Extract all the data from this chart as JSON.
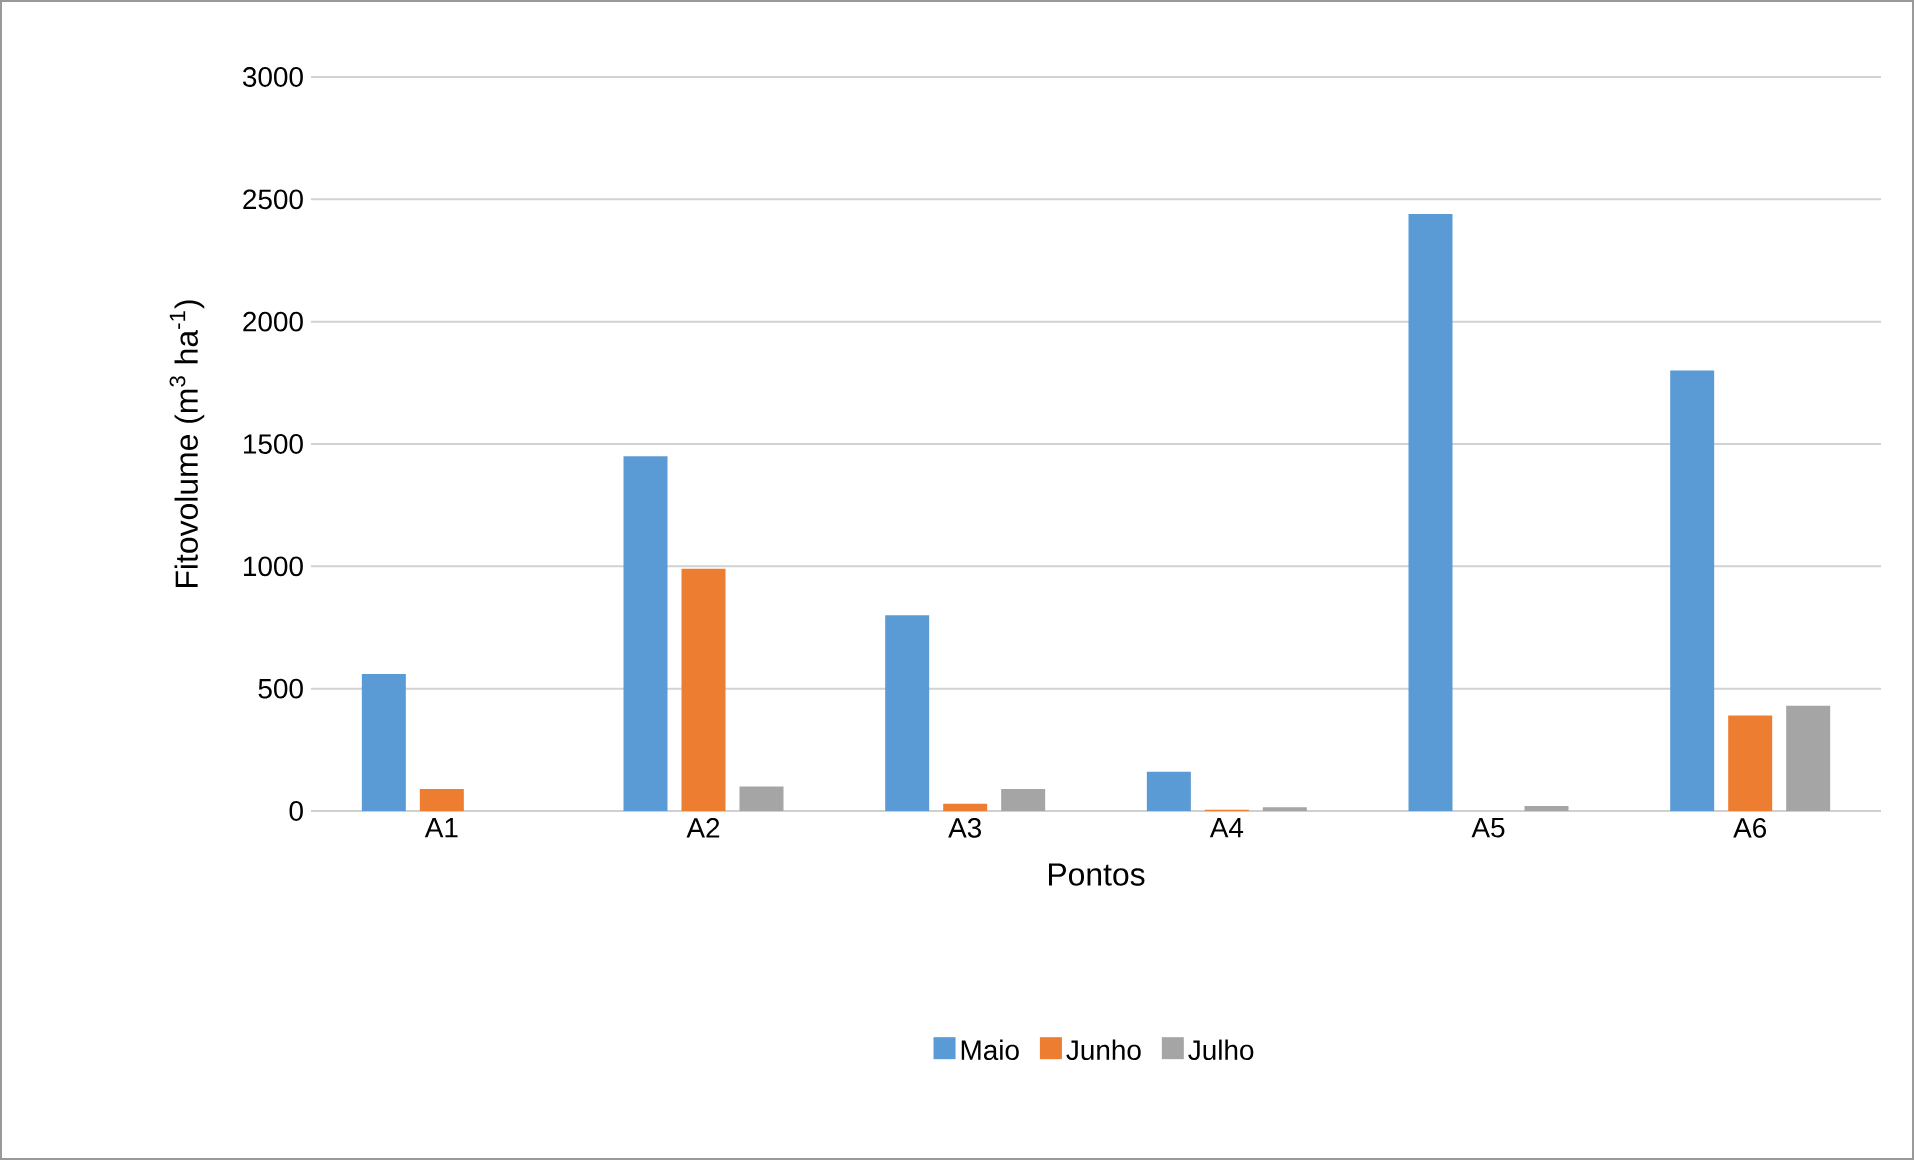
{
  "chart_data": {
    "type": "bar",
    "xlabel": "Pontos",
    "ylabel": "Fitovolume (m$^{3}$ ha$^{-1}$)",
    "categories": [
      "A1",
      "A2",
      "A3",
      "A4",
      "A5",
      "A6"
    ],
    "series": [
      {
        "name": "Maio",
        "color": "#5b9bd5",
        "values": [
          560,
          1450,
          800,
          160,
          2440,
          1800
        ]
      },
      {
        "name": "Junho",
        "color": "#ed7d31",
        "values": [
          90,
          990,
          30,
          5,
          null,
          390
        ]
      },
      {
        "name": "Julho",
        "color": "#a5a5a5",
        "values": [
          null,
          100,
          90,
          15,
          20,
          430
        ]
      }
    ],
    "ylim": [
      0,
      3000
    ],
    "yticks": [
      0,
      500,
      1000,
      1500,
      2000,
      2500,
      3000
    ],
    "grid": "y",
    "legend": "bottom"
  }
}
